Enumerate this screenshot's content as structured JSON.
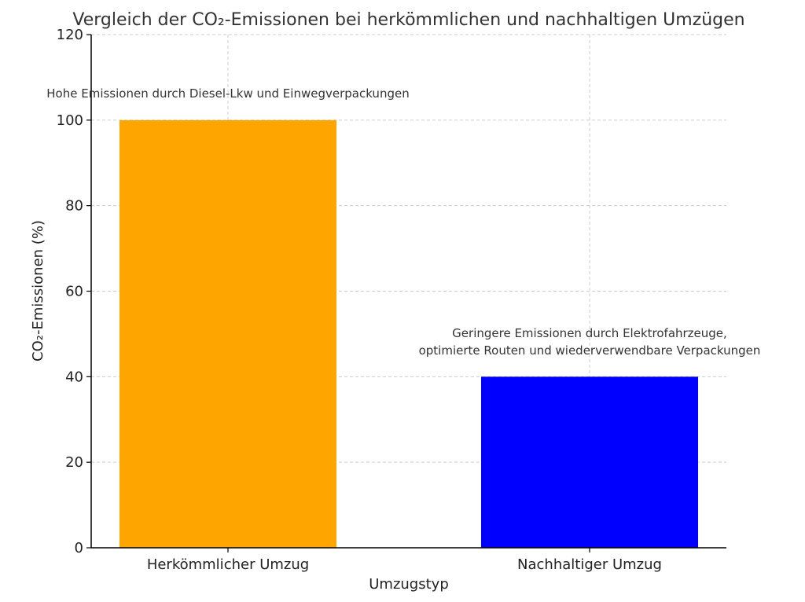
{
  "chart_data": {
    "type": "bar",
    "title": "Vergleich der CO₂-Emissionen bei herkömmlichen und nachhaltigen Umzügen",
    "xlabel": "Umzugstyp",
    "ylabel": "CO₂-Emissionen (%)",
    "categories": [
      "Herkömmlicher Umzug",
      "Nachhaltiger Umzug"
    ],
    "values": [
      100,
      40
    ],
    "colors": [
      "#FFA500",
      "#0000FF"
    ],
    "ylim": [
      0,
      120
    ],
    "yticks": [
      0,
      20,
      40,
      60,
      80,
      100,
      120
    ],
    "grid": true,
    "annotations": [
      {
        "category_index": 0,
        "lines": [
          "Hohe Emissionen durch Diesel-Lkw und Einwegverpackungen"
        ]
      },
      {
        "category_index": 1,
        "lines": [
          "Geringere Emissionen durch Elektrofahrzeuge,",
          "optimierte Routen und wiederverwendbare Verpackungen"
        ]
      }
    ]
  }
}
